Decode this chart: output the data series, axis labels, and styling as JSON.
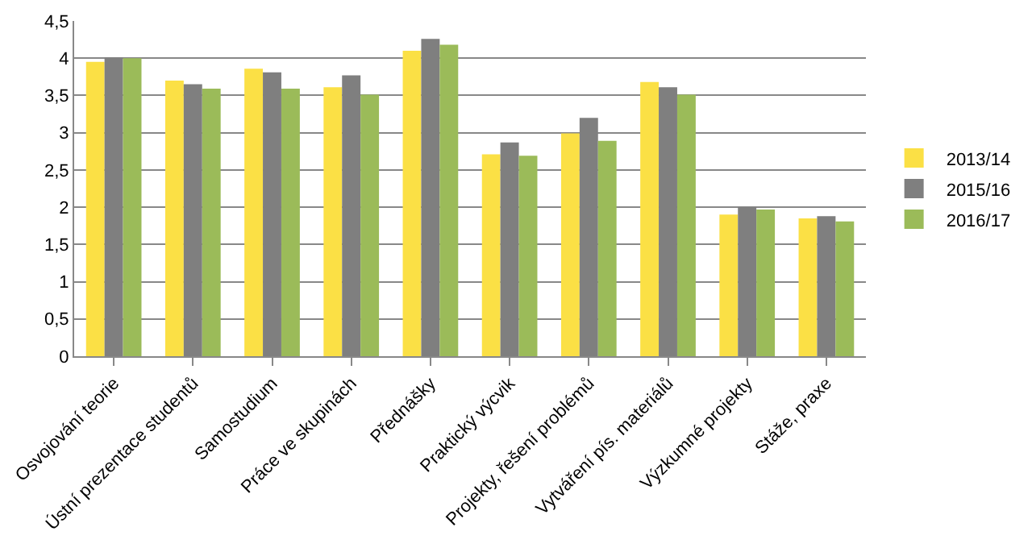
{
  "chart_data": {
    "type": "bar",
    "categories": [
      "Osvojování teorie",
      "Ústní prezentace studentů",
      "Samostudium",
      "Práce ve skupinách",
      "Přednášky",
      "Praktický výcvik",
      "Projekty, řešení problémů",
      "Vytváření pís. materiálů",
      "Výzkumné projekty",
      "Stáže, praxe"
    ],
    "series": [
      {
        "name": "2013/14",
        "color": "#fbe045",
        "values": [
          3.95,
          3.7,
          3.86,
          3.61,
          4.1,
          2.71,
          2.99,
          3.68,
          1.9,
          1.85
        ]
      },
      {
        "name": "2015/16",
        "color": "#7f7f7f",
        "values": [
          4.01,
          3.65,
          3.81,
          3.77,
          4.26,
          2.87,
          3.2,
          3.61,
          2.0,
          1.88
        ]
      },
      {
        "name": "2016/17",
        "color": "#9bbb59",
        "values": [
          4.0,
          3.59,
          3.59,
          3.51,
          4.18,
          2.69,
          2.89,
          3.51,
          1.97,
          1.81
        ]
      }
    ],
    "ylim": [
      0,
      4.5
    ],
    "yticks": [
      0,
      {
        "value": 0.5,
        "label": "0,5"
      },
      1,
      {
        "value": 1.5,
        "label": "1,5"
      },
      2,
      {
        "value": 2.5,
        "label": "2,5"
      },
      3,
      {
        "value": 3.5,
        "label": "3,5"
      },
      4,
      {
        "value": 4.5,
        "label": "4,5"
      }
    ],
    "grid": "y",
    "legend": "right"
  }
}
